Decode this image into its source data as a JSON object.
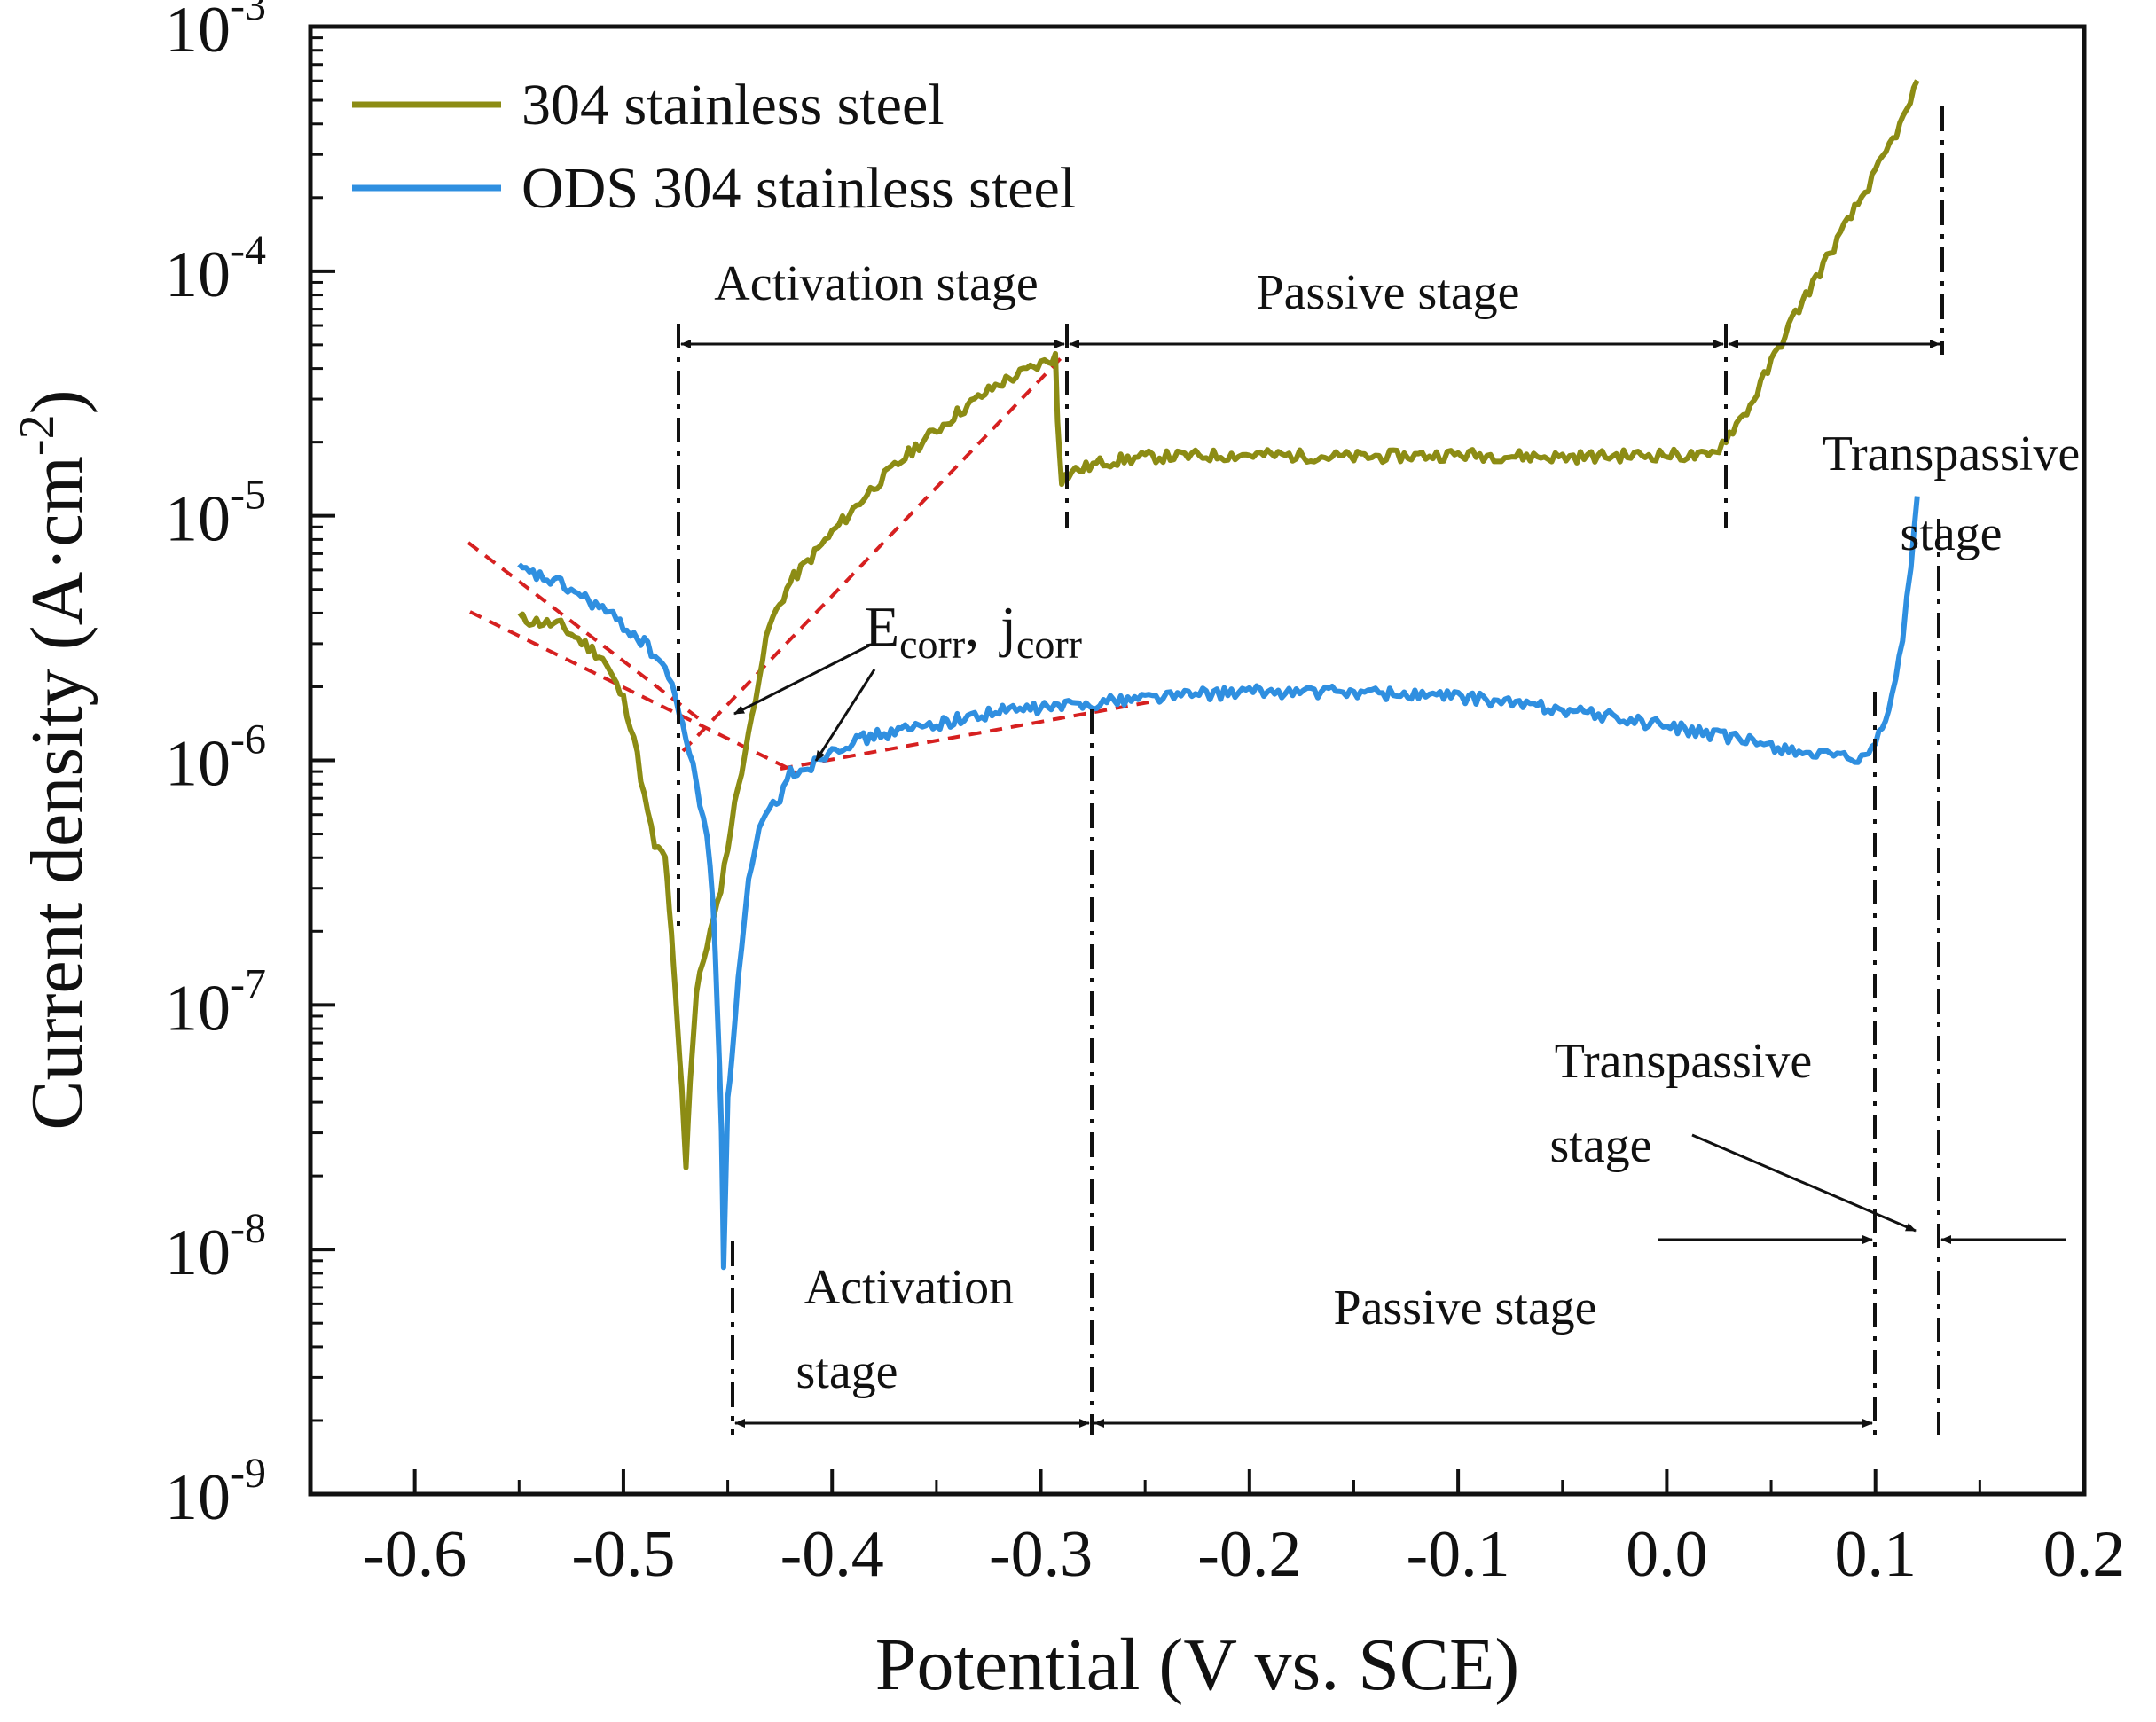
{
  "chart_data": {
    "type": "line",
    "title": "",
    "xlabel": "Potential (V vs. SCE)",
    "ylabel": "Current density (A·cm⁻²)",
    "y_scale": "log",
    "xlim": [
      -0.65,
      0.2
    ],
    "ylim_exp": [
      -9,
      -3
    ],
    "x_ticks": [
      -0.6,
      -0.5,
      -0.4,
      -0.3,
      -0.2,
      -0.1,
      0.0,
      0.1,
      0.2
    ],
    "x_tick_labels": [
      "-0.6",
      "-0.5",
      "-0.4",
      "-0.3",
      "-0.2",
      "-0.1",
      "0.0",
      "0.1",
      "0.2"
    ],
    "y_tick_exponents": [
      -9,
      -8,
      -7,
      -6,
      -5,
      -4,
      -3
    ],
    "y_tick_labels": [
      "10",
      "10",
      "10",
      "10",
      "10",
      "10",
      "10"
    ],
    "y_tick_sups": [
      "-9",
      "-8",
      "-7",
      "-6",
      "-5",
      "-4",
      "-3"
    ],
    "legend_position": "top-left",
    "series": [
      {
        "name": "304 stainless steel",
        "color": "#8c8c14",
        "points": [
          [
            -0.55,
            -5.42
          ],
          [
            -0.53,
            -5.45
          ],
          [
            -0.51,
            -5.58
          ],
          [
            -0.5,
            -5.75
          ],
          [
            -0.495,
            -5.9
          ],
          [
            -0.49,
            -6.15
          ],
          [
            -0.485,
            -6.35
          ],
          [
            -0.48,
            -6.4
          ],
          [
            -0.478,
            -6.6
          ],
          [
            -0.476,
            -6.85
          ],
          [
            -0.474,
            -7.1
          ],
          [
            -0.472,
            -7.35
          ],
          [
            -0.47,
            -7.65
          ],
          [
            -0.468,
            -7.3
          ],
          [
            -0.465,
            -6.95
          ],
          [
            -0.46,
            -6.75
          ],
          [
            -0.455,
            -6.6
          ],
          [
            -0.45,
            -6.35
          ],
          [
            -0.445,
            -6.1
          ],
          [
            -0.44,
            -5.9
          ],
          [
            -0.435,
            -5.65
          ],
          [
            -0.43,
            -5.45
          ],
          [
            -0.42,
            -5.27
          ],
          [
            -0.4,
            -5.07
          ],
          [
            -0.38,
            -4.88
          ],
          [
            -0.36,
            -4.72
          ],
          [
            -0.34,
            -4.58
          ],
          [
            -0.32,
            -4.46
          ],
          [
            -0.3,
            -4.38
          ],
          [
            -0.293,
            -4.35
          ],
          [
            -0.292,
            -4.6
          ],
          [
            -0.29,
            -4.85
          ],
          [
            -0.285,
            -4.82
          ],
          [
            -0.27,
            -4.78
          ],
          [
            -0.25,
            -4.76
          ],
          [
            -0.2,
            -4.75
          ],
          [
            -0.15,
            -4.76
          ],
          [
            -0.1,
            -4.75
          ],
          [
            -0.05,
            -4.76
          ],
          [
            0.0,
            -4.75
          ],
          [
            0.02,
            -4.76
          ],
          [
            0.025,
            -4.72
          ],
          [
            0.04,
            -4.55
          ],
          [
            0.06,
            -4.2
          ],
          [
            0.08,
            -3.9
          ],
          [
            0.1,
            -3.6
          ],
          [
            0.115,
            -3.35
          ],
          [
            0.12,
            -3.22
          ]
        ]
      },
      {
        "name": "ODS 304 stainless steel",
        "color": "#2f8fe0",
        "points": [
          [
            -0.55,
            -5.22
          ],
          [
            -0.53,
            -5.28
          ],
          [
            -0.51,
            -5.38
          ],
          [
            -0.49,
            -5.52
          ],
          [
            -0.48,
            -5.62
          ],
          [
            -0.475,
            -5.75
          ],
          [
            -0.47,
            -5.9
          ],
          [
            -0.465,
            -6.1
          ],
          [
            -0.46,
            -6.3
          ],
          [
            -0.457,
            -6.6
          ],
          [
            -0.455,
            -7.0
          ],
          [
            -0.453,
            -7.5
          ],
          [
            -0.452,
            -8.05
          ],
          [
            -0.45,
            -7.4
          ],
          [
            -0.448,
            -7.2
          ],
          [
            -0.445,
            -6.9
          ],
          [
            -0.44,
            -6.5
          ],
          [
            -0.435,
            -6.3
          ],
          [
            -0.43,
            -6.2
          ],
          [
            -0.425,
            -6.15
          ],
          [
            -0.42,
            -6.05
          ],
          [
            -0.41,
            -6.02
          ],
          [
            -0.4,
            -5.95
          ],
          [
            -0.38,
            -5.9
          ],
          [
            -0.35,
            -5.85
          ],
          [
            -0.32,
            -5.8
          ],
          [
            -0.28,
            -5.77
          ],
          [
            -0.25,
            -5.74
          ],
          [
            -0.2,
            -5.72
          ],
          [
            -0.15,
            -5.72
          ],
          [
            -0.1,
            -5.74
          ],
          [
            -0.05,
            -5.79
          ],
          [
            0.0,
            -5.86
          ],
          [
            0.05,
            -5.94
          ],
          [
            0.08,
            -5.99
          ],
          [
            0.095,
            -6.0
          ],
          [
            0.1,
            -5.93
          ],
          [
            0.108,
            -5.75
          ],
          [
            0.113,
            -5.5
          ],
          [
            0.117,
            -5.2
          ],
          [
            0.12,
            -4.92
          ]
        ]
      }
    ],
    "annotations": {
      "activation_304": "Activation stage",
      "passive_304": "Passive stage",
      "transpassive_304_line1": "Transpassive",
      "transpassive_304_line2": "stage",
      "activation_ods_line1": "Activation",
      "activation_ods_line2": "stage",
      "passive_ods": "Passive stage",
      "transpassive_ods_line1": "Transpassive",
      "transpassive_ods_line2": "stage",
      "ecorr_main": "E",
      "ecorr_sub": "corr",
      "comma": ",",
      "jcorr_main": "j",
      "jcorr_sub": "corr"
    }
  }
}
